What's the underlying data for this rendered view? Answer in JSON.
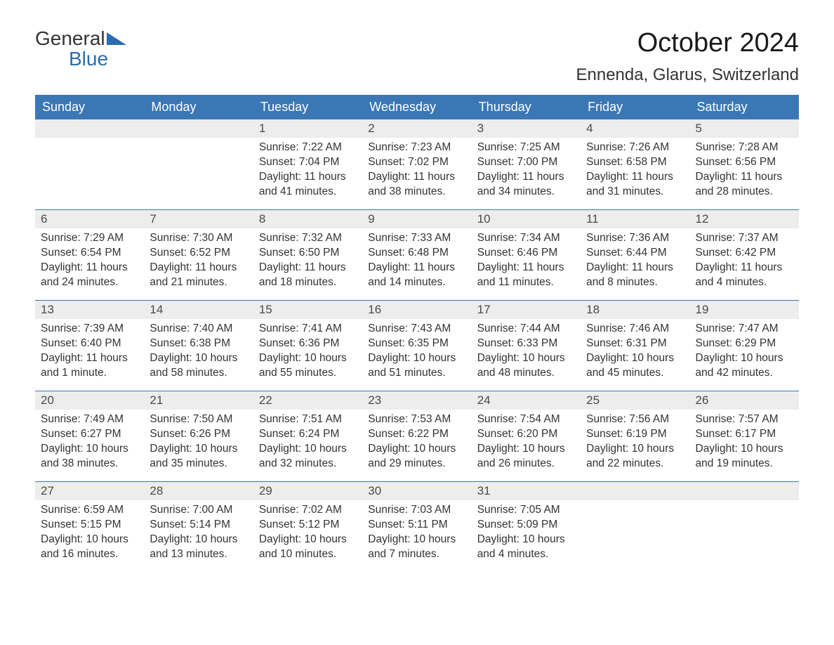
{
  "brand": {
    "word1": "General",
    "word2": "Blue",
    "text_color": "#333333",
    "accent_color": "#2b6cb0"
  },
  "title": {
    "month_year": "October 2024",
    "location": "Ennenda, Glarus, Switzerland",
    "title_fontsize": 38,
    "location_fontsize": 24,
    "title_color": "#1a1a1a"
  },
  "calendar": {
    "type": "table",
    "header_bg": "#3b77b5",
    "header_text_color": "#ffffff",
    "daynum_bg": "#ededed",
    "week_border_color": "#3b77b5",
    "body_text_color": "#333333",
    "body_fontsize": 15.5,
    "days_of_week": [
      "Sunday",
      "Monday",
      "Tuesday",
      "Wednesday",
      "Thursday",
      "Friday",
      "Saturday"
    ],
    "weeks": [
      [
        null,
        null,
        {
          "n": "1",
          "sunrise": "Sunrise: 7:22 AM",
          "sunset": "Sunset: 7:04 PM",
          "daylight": "Daylight: 11 hours and 41 minutes."
        },
        {
          "n": "2",
          "sunrise": "Sunrise: 7:23 AM",
          "sunset": "Sunset: 7:02 PM",
          "daylight": "Daylight: 11 hours and 38 minutes."
        },
        {
          "n": "3",
          "sunrise": "Sunrise: 7:25 AM",
          "sunset": "Sunset: 7:00 PM",
          "daylight": "Daylight: 11 hours and 34 minutes."
        },
        {
          "n": "4",
          "sunrise": "Sunrise: 7:26 AM",
          "sunset": "Sunset: 6:58 PM",
          "daylight": "Daylight: 11 hours and 31 minutes."
        },
        {
          "n": "5",
          "sunrise": "Sunrise: 7:28 AM",
          "sunset": "Sunset: 6:56 PM",
          "daylight": "Daylight: 11 hours and 28 minutes."
        }
      ],
      [
        {
          "n": "6",
          "sunrise": "Sunrise: 7:29 AM",
          "sunset": "Sunset: 6:54 PM",
          "daylight": "Daylight: 11 hours and 24 minutes."
        },
        {
          "n": "7",
          "sunrise": "Sunrise: 7:30 AM",
          "sunset": "Sunset: 6:52 PM",
          "daylight": "Daylight: 11 hours and 21 minutes."
        },
        {
          "n": "8",
          "sunrise": "Sunrise: 7:32 AM",
          "sunset": "Sunset: 6:50 PM",
          "daylight": "Daylight: 11 hours and 18 minutes."
        },
        {
          "n": "9",
          "sunrise": "Sunrise: 7:33 AM",
          "sunset": "Sunset: 6:48 PM",
          "daylight": "Daylight: 11 hours and 14 minutes."
        },
        {
          "n": "10",
          "sunrise": "Sunrise: 7:34 AM",
          "sunset": "Sunset: 6:46 PM",
          "daylight": "Daylight: 11 hours and 11 minutes."
        },
        {
          "n": "11",
          "sunrise": "Sunrise: 7:36 AM",
          "sunset": "Sunset: 6:44 PM",
          "daylight": "Daylight: 11 hours and 8 minutes."
        },
        {
          "n": "12",
          "sunrise": "Sunrise: 7:37 AM",
          "sunset": "Sunset: 6:42 PM",
          "daylight": "Daylight: 11 hours and 4 minutes."
        }
      ],
      [
        {
          "n": "13",
          "sunrise": "Sunrise: 7:39 AM",
          "sunset": "Sunset: 6:40 PM",
          "daylight": "Daylight: 11 hours and 1 minute."
        },
        {
          "n": "14",
          "sunrise": "Sunrise: 7:40 AM",
          "sunset": "Sunset: 6:38 PM",
          "daylight": "Daylight: 10 hours and 58 minutes."
        },
        {
          "n": "15",
          "sunrise": "Sunrise: 7:41 AM",
          "sunset": "Sunset: 6:36 PM",
          "daylight": "Daylight: 10 hours and 55 minutes."
        },
        {
          "n": "16",
          "sunrise": "Sunrise: 7:43 AM",
          "sunset": "Sunset: 6:35 PM",
          "daylight": "Daylight: 10 hours and 51 minutes."
        },
        {
          "n": "17",
          "sunrise": "Sunrise: 7:44 AM",
          "sunset": "Sunset: 6:33 PM",
          "daylight": "Daylight: 10 hours and 48 minutes."
        },
        {
          "n": "18",
          "sunrise": "Sunrise: 7:46 AM",
          "sunset": "Sunset: 6:31 PM",
          "daylight": "Daylight: 10 hours and 45 minutes."
        },
        {
          "n": "19",
          "sunrise": "Sunrise: 7:47 AM",
          "sunset": "Sunset: 6:29 PM",
          "daylight": "Daylight: 10 hours and 42 minutes."
        }
      ],
      [
        {
          "n": "20",
          "sunrise": "Sunrise: 7:49 AM",
          "sunset": "Sunset: 6:27 PM",
          "daylight": "Daylight: 10 hours and 38 minutes."
        },
        {
          "n": "21",
          "sunrise": "Sunrise: 7:50 AM",
          "sunset": "Sunset: 6:26 PM",
          "daylight": "Daylight: 10 hours and 35 minutes."
        },
        {
          "n": "22",
          "sunrise": "Sunrise: 7:51 AM",
          "sunset": "Sunset: 6:24 PM",
          "daylight": "Daylight: 10 hours and 32 minutes."
        },
        {
          "n": "23",
          "sunrise": "Sunrise: 7:53 AM",
          "sunset": "Sunset: 6:22 PM",
          "daylight": "Daylight: 10 hours and 29 minutes."
        },
        {
          "n": "24",
          "sunrise": "Sunrise: 7:54 AM",
          "sunset": "Sunset: 6:20 PM",
          "daylight": "Daylight: 10 hours and 26 minutes."
        },
        {
          "n": "25",
          "sunrise": "Sunrise: 7:56 AM",
          "sunset": "Sunset: 6:19 PM",
          "daylight": "Daylight: 10 hours and 22 minutes."
        },
        {
          "n": "26",
          "sunrise": "Sunrise: 7:57 AM",
          "sunset": "Sunset: 6:17 PM",
          "daylight": "Daylight: 10 hours and 19 minutes."
        }
      ],
      [
        {
          "n": "27",
          "sunrise": "Sunrise: 6:59 AM",
          "sunset": "Sunset: 5:15 PM",
          "daylight": "Daylight: 10 hours and 16 minutes."
        },
        {
          "n": "28",
          "sunrise": "Sunrise: 7:00 AM",
          "sunset": "Sunset: 5:14 PM",
          "daylight": "Daylight: 10 hours and 13 minutes."
        },
        {
          "n": "29",
          "sunrise": "Sunrise: 7:02 AM",
          "sunset": "Sunset: 5:12 PM",
          "daylight": "Daylight: 10 hours and 10 minutes."
        },
        {
          "n": "30",
          "sunrise": "Sunrise: 7:03 AM",
          "sunset": "Sunset: 5:11 PM",
          "daylight": "Daylight: 10 hours and 7 minutes."
        },
        {
          "n": "31",
          "sunrise": "Sunrise: 7:05 AM",
          "sunset": "Sunset: 5:09 PM",
          "daylight": "Daylight: 10 hours and 4 minutes."
        },
        null,
        null
      ]
    ]
  }
}
